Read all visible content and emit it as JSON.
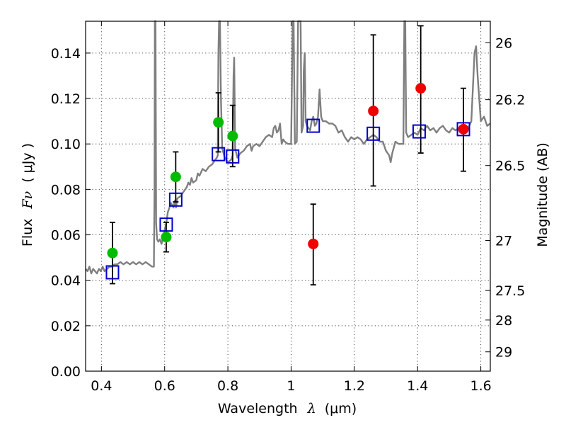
{
  "chart_data": {
    "type": "scatter",
    "xlabel_prefix": "Wavelength",
    "xlabel_symbol": "λ",
    "xlabel_unit": "(μm)",
    "ylabel_prefix": "Flux",
    "ylabel_symbol": "Fν",
    "ylabel_unit": "(  μJy )",
    "y2label": "Magnitude (AB)",
    "xlim": [
      0.35,
      1.63
    ],
    "ylim": [
      0.0,
      0.154
    ],
    "grid": true,
    "x_ticks": [
      0.4,
      0.6,
      0.8,
      1.0,
      1.2,
      1.4,
      1.6
    ],
    "x_tick_labels": [
      "0.4",
      "0.6",
      "0.8",
      "1",
      "1.2",
      "1.4",
      "1.6"
    ],
    "y_ticks": [
      0.0,
      0.02,
      0.04,
      0.06,
      0.08,
      0.1,
      0.12,
      0.14
    ],
    "y_tick_labels": [
      "0.00",
      "0.02",
      "0.04",
      "0.06",
      "0.08",
      "0.10",
      "0.12",
      "0.14"
    ],
    "y2_ticks": [
      {
        "flux": 0.1445,
        "label": "26"
      },
      {
        "flux": 0.1195,
        "label": "26.2"
      },
      {
        "flux": 0.0905,
        "label": "26.5"
      },
      {
        "flux": 0.0575,
        "label": "27"
      },
      {
        "flux": 0.0355,
        "label": "27.5"
      },
      {
        "flux": 0.0225,
        "label": "28"
      },
      {
        "flux": 0.0085,
        "label": "29"
      }
    ],
    "colors": {
      "template": "#7f7f7f",
      "model": "#0000cc",
      "green": "#00bb00",
      "red": "#ee0000",
      "errorbar": "#000000",
      "grid": "#444444"
    },
    "template_spectrum": [
      [
        0.35,
        0.045
      ],
      [
        0.356,
        0.044
      ],
      [
        0.362,
        0.046
      ],
      [
        0.368,
        0.043
      ],
      [
        0.374,
        0.045
      ],
      [
        0.38,
        0.044
      ],
      [
        0.386,
        0.043
      ],
      [
        0.392,
        0.045
      ],
      [
        0.398,
        0.044
      ],
      [
        0.404,
        0.046
      ],
      [
        0.41,
        0.044
      ],
      [
        0.418,
        0.045
      ],
      [
        0.426,
        0.046
      ],
      [
        0.434,
        0.046
      ],
      [
        0.442,
        0.047
      ],
      [
        0.45,
        0.047
      ],
      [
        0.46,
        0.048
      ],
      [
        0.47,
        0.047
      ],
      [
        0.48,
        0.048
      ],
      [
        0.49,
        0.047
      ],
      [
        0.5,
        0.048
      ],
      [
        0.51,
        0.047
      ],
      [
        0.52,
        0.048
      ],
      [
        0.53,
        0.047
      ],
      [
        0.54,
        0.048
      ],
      [
        0.55,
        0.047
      ],
      [
        0.56,
        0.046
      ],
      [
        0.566,
        0.046
      ],
      [
        0.568,
        0.08
      ],
      [
        0.569,
        0.16
      ],
      [
        0.571,
        0.16
      ],
      [
        0.573,
        0.065
      ],
      [
        0.576,
        0.058
      ],
      [
        0.58,
        0.057
      ],
      [
        0.585,
        0.058
      ],
      [
        0.59,
        0.056
      ],
      [
        0.595,
        0.059
      ],
      [
        0.6,
        0.062
      ],
      [
        0.605,
        0.065
      ],
      [
        0.61,
        0.07
      ],
      [
        0.62,
        0.074
      ],
      [
        0.628,
        0.072
      ],
      [
        0.632,
        0.075
      ],
      [
        0.636,
        0.072
      ],
      [
        0.64,
        0.076
      ],
      [
        0.65,
        0.077
      ],
      [
        0.66,
        0.079
      ],
      [
        0.67,
        0.081
      ],
      [
        0.675,
        0.083
      ],
      [
        0.68,
        0.082
      ],
      [
        0.685,
        0.085
      ],
      [
        0.69,
        0.083
      ],
      [
        0.7,
        0.084
      ],
      [
        0.705,
        0.087
      ],
      [
        0.71,
        0.086
      ],
      [
        0.72,
        0.089
      ],
      [
        0.73,
        0.088
      ],
      [
        0.74,
        0.09
      ],
      [
        0.75,
        0.091
      ],
      [
        0.76,
        0.093
      ],
      [
        0.765,
        0.094
      ],
      [
        0.768,
        0.095
      ],
      [
        0.77,
        0.14
      ],
      [
        0.772,
        0.16
      ],
      [
        0.775,
        0.16
      ],
      [
        0.778,
        0.12
      ],
      [
        0.782,
        0.098
      ],
      [
        0.79,
        0.094
      ],
      [
        0.8,
        0.092
      ],
      [
        0.81,
        0.093
      ],
      [
        0.815,
        0.095
      ],
      [
        0.818,
        0.13
      ],
      [
        0.82,
        0.138
      ],
      [
        0.823,
        0.098
      ],
      [
        0.83,
        0.094
      ],
      [
        0.84,
        0.096
      ],
      [
        0.85,
        0.097
      ],
      [
        0.86,
        0.099
      ],
      [
        0.87,
        0.1
      ],
      [
        0.875,
        0.097
      ],
      [
        0.88,
        0.099
      ],
      [
        0.89,
        0.1
      ],
      [
        0.9,
        0.099
      ],
      [
        0.91,
        0.101
      ],
      [
        0.92,
        0.103
      ],
      [
        0.93,
        0.104
      ],
      [
        0.94,
        0.103
      ],
      [
        0.945,
        0.107
      ],
      [
        0.95,
        0.108
      ],
      [
        0.955,
        0.105
      ],
      [
        0.96,
        0.106
      ],
      [
        0.965,
        0.109
      ],
      [
        0.97,
        0.1
      ],
      [
        0.975,
        0.102
      ],
      [
        0.98,
        0.101
      ],
      [
        0.99,
        0.1
      ],
      [
        1.0,
        0.1
      ],
      [
        1.005,
        0.16
      ],
      [
        1.008,
        0.16
      ],
      [
        1.012,
        0.1
      ],
      [
        1.018,
        0.101
      ],
      [
        1.022,
        0.16
      ],
      [
        1.025,
        0.16
      ],
      [
        1.03,
        0.16
      ],
      [
        1.033,
        0.105
      ],
      [
        1.038,
        0.108
      ],
      [
        1.04,
        0.132
      ],
      [
        1.043,
        0.14
      ],
      [
        1.046,
        0.11
      ],
      [
        1.05,
        0.108
      ],
      [
        1.06,
        0.106
      ],
      [
        1.065,
        0.11
      ],
      [
        1.07,
        0.112
      ],
      [
        1.075,
        0.108
      ],
      [
        1.08,
        0.109
      ],
      [
        1.085,
        0.112
      ],
      [
        1.09,
        0.124
      ],
      [
        1.095,
        0.112
      ],
      [
        1.1,
        0.11
      ],
      [
        1.11,
        0.11
      ],
      [
        1.12,
        0.109
      ],
      [
        1.13,
        0.109
      ],
      [
        1.14,
        0.108
      ],
      [
        1.15,
        0.105
      ],
      [
        1.16,
        0.106
      ],
      [
        1.17,
        0.103
      ],
      [
        1.18,
        0.101
      ],
      [
        1.19,
        0.103
      ],
      [
        1.2,
        0.102
      ],
      [
        1.21,
        0.103
      ],
      [
        1.22,
        0.102
      ],
      [
        1.23,
        0.1
      ],
      [
        1.24,
        0.102
      ],
      [
        1.25,
        0.103
      ],
      [
        1.26,
        0.104
      ],
      [
        1.27,
        0.103
      ],
      [
        1.28,
        0.101
      ],
      [
        1.29,
        0.101
      ],
      [
        1.3,
        0.097
      ],
      [
        1.31,
        0.095
      ],
      [
        1.315,
        0.092
      ],
      [
        1.32,
        0.096
      ],
      [
        1.33,
        0.101
      ],
      [
        1.34,
        0.1
      ],
      [
        1.35,
        0.1
      ],
      [
        1.355,
        0.1
      ],
      [
        1.358,
        0.16
      ],
      [
        1.361,
        0.16
      ],
      [
        1.364,
        0.105
      ],
      [
        1.37,
        0.103
      ],
      [
        1.38,
        0.104
      ],
      [
        1.39,
        0.105
      ],
      [
        1.4,
        0.104
      ],
      [
        1.41,
        0.107
      ],
      [
        1.42,
        0.106
      ],
      [
        1.43,
        0.108
      ],
      [
        1.44,
        0.106
      ],
      [
        1.45,
        0.107
      ],
      [
        1.46,
        0.105
      ],
      [
        1.47,
        0.107
      ],
      [
        1.48,
        0.108
      ],
      [
        1.49,
        0.106
      ],
      [
        1.5,
        0.105
      ],
      [
        1.51,
        0.107
      ],
      [
        1.52,
        0.106
      ],
      [
        1.53,
        0.107
      ],
      [
        1.54,
        0.106
      ],
      [
        1.55,
        0.105
      ],
      [
        1.56,
        0.107
      ],
      [
        1.57,
        0.11
      ],
      [
        1.58,
        0.14
      ],
      [
        1.585,
        0.143
      ],
      [
        1.59,
        0.13
      ],
      [
        1.6,
        0.11
      ],
      [
        1.61,
        0.112
      ],
      [
        1.62,
        0.108
      ],
      [
        1.63,
        0.109
      ]
    ],
    "model_points": [
      {
        "x": 0.435,
        "y": 0.0435
      },
      {
        "x": 0.605,
        "y": 0.0645
      },
      {
        "x": 0.635,
        "y": 0.0755
      },
      {
        "x": 0.77,
        "y": 0.0955
      },
      {
        "x": 0.815,
        "y": 0.0945
      },
      {
        "x": 1.07,
        "y": 0.108
      },
      {
        "x": 1.26,
        "y": 0.1045
      },
      {
        "x": 1.405,
        "y": 0.1055
      },
      {
        "x": 1.545,
        "y": 0.1065
      }
    ],
    "green_points": [
      {
        "x": 0.435,
        "y": 0.052,
        "yerr_low": 0.0385,
        "yerr_high": 0.0655
      },
      {
        "x": 0.605,
        "y": 0.059,
        "yerr_low": 0.0525,
        "yerr_high": 0.0655
      },
      {
        "x": 0.635,
        "y": 0.0855,
        "yerr_low": 0.0745,
        "yerr_high": 0.0965
      },
      {
        "x": 0.77,
        "y": 0.1095,
        "yerr_low": 0.0965,
        "yerr_high": 0.1225
      },
      {
        "x": 0.815,
        "y": 0.1035,
        "yerr_low": 0.09,
        "yerr_high": 0.117
      }
    ],
    "red_points": [
      {
        "x": 1.07,
        "y": 0.056,
        "yerr_low": 0.038,
        "yerr_high": 0.0735
      },
      {
        "x": 1.26,
        "y": 0.1145,
        "yerr_low": 0.0815,
        "yerr_high": 0.148
      },
      {
        "x": 1.41,
        "y": 0.1245,
        "yerr_low": 0.096,
        "yerr_high": 0.152
      },
      {
        "x": 1.545,
        "y": 0.1065,
        "yerr_low": 0.088,
        "yerr_high": 0.1245
      }
    ]
  }
}
